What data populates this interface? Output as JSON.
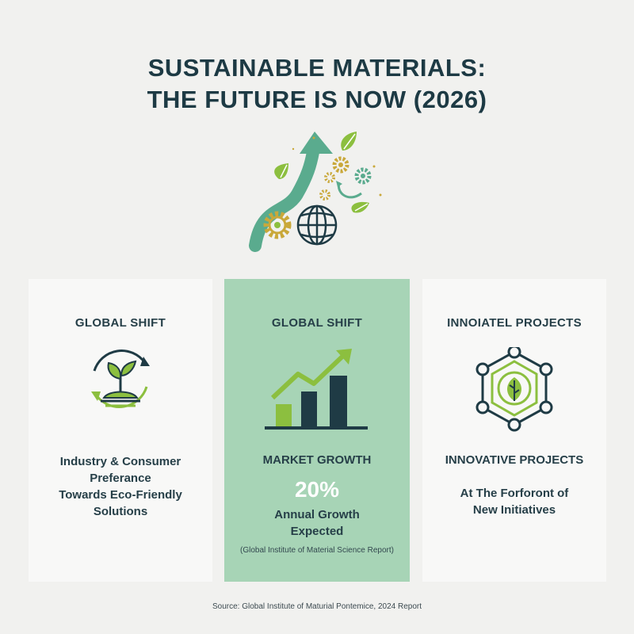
{
  "title": {
    "line1": "SUSTAINABLE MATERIALS:",
    "line2": "THE FUTURE IS NOW (2026)"
  },
  "icons": {
    "hero": "growth-arrow-globe-gears-icon",
    "left": "seedling-cycle-icon",
    "mid": "bar-chart-growth-icon",
    "right": "hexagon-leaf-network-icon"
  },
  "colors": {
    "background": "#f1f1ef",
    "title": "#1d3a44",
    "accent_green": "#8cbf3f",
    "teal": "#5aab8e",
    "dark": "#1f3b45",
    "mid_card": "#a7d4b6",
    "gold": "#c9a83a"
  },
  "cards": {
    "left": {
      "heading": "GLOBAL SHIFT",
      "body": [
        "Industry & Consumer",
        "Preferance",
        "Towards Eco-Friendly",
        "Solutions"
      ]
    },
    "mid": {
      "heading": "GLOBAL SHIFT",
      "subheading": "MARKET GROWTH",
      "stat_value": "20%",
      "stat_label": [
        "Annual Growth",
        "Expected"
      ],
      "source": "(Global Institute of Material Science Report)"
    },
    "right": {
      "heading": "INNOIATEL PROJECTS",
      "subheading": "INNOVATIVE PROJECTS",
      "body": [
        "At The Forforont of",
        "New Initiatives"
      ]
    }
  },
  "footer": "Source: Global Institute of Maturial Pontemice, 2024 Report"
}
